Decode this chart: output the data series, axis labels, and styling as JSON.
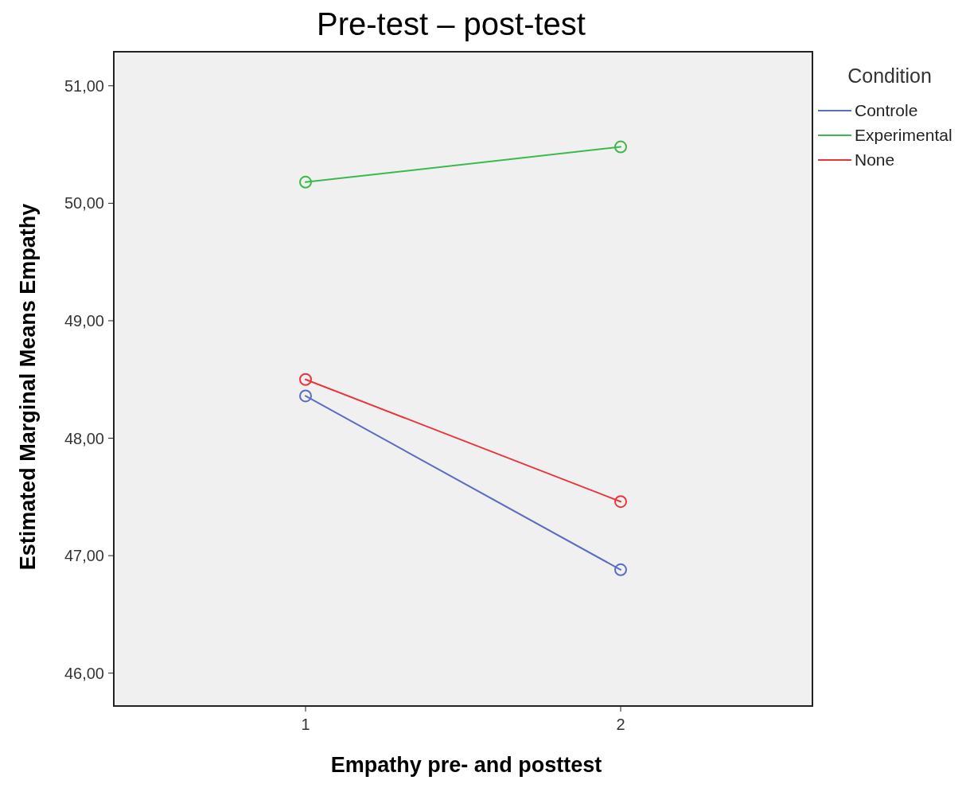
{
  "chart_data": {
    "type": "line",
    "title": "Pre-test – post-test",
    "xlabel": "Empathy pre- and posttest",
    "ylabel": "Estimated Marginal Means Empathy",
    "legend_title": "Condition",
    "legend": "top right",
    "marker": "circle",
    "grid": false,
    "categories": [
      "1",
      "2"
    ],
    "ylim": [
      45.72,
      51.29
    ],
    "yticks": [
      {
        "value": 46,
        "label": "46,00"
      },
      {
        "value": 47,
        "label": "47,00"
      },
      {
        "value": 48,
        "label": "48,00"
      },
      {
        "value": 49,
        "label": "49,00"
      },
      {
        "value": 50,
        "label": "50,00"
      },
      {
        "value": 51,
        "label": "51,00"
      }
    ],
    "series": [
      {
        "name": "Controle",
        "color": "#5b6cc4",
        "values": [
          48.36,
          46.88
        ]
      },
      {
        "name": "Experimental",
        "color": "#3cb94a",
        "values": [
          50.18,
          50.48
        ]
      },
      {
        "name": "None",
        "color": "#e8363c",
        "values": [
          48.5,
          47.46
        ]
      }
    ]
  }
}
